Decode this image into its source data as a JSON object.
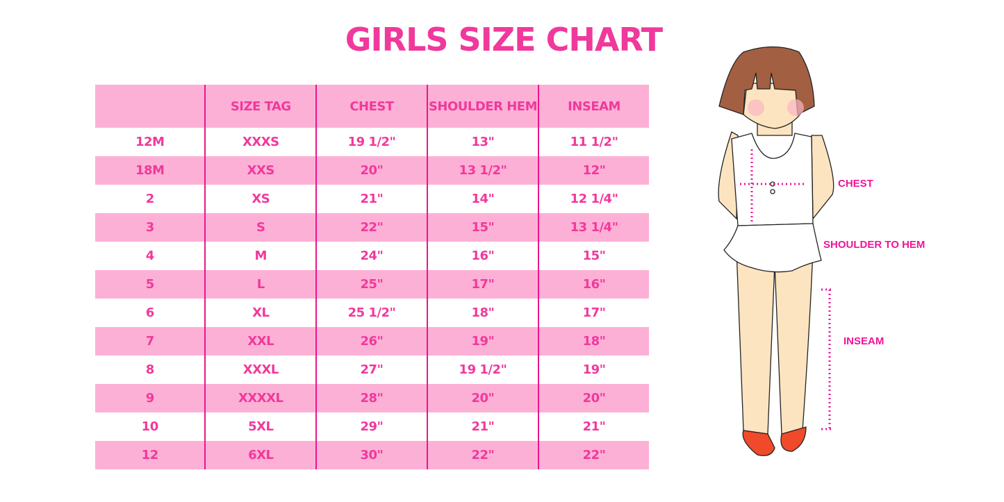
{
  "title": "GIRLS SIZE CHART",
  "table": {
    "headers": [
      "",
      "SIZE TAG",
      "CHEST",
      "SHOULDER HEM",
      "INSEAM"
    ],
    "rows": [
      [
        "12M",
        "XXXS",
        "19 1/2\"",
        "13\"",
        "11 1/2\""
      ],
      [
        "18M",
        "XXS",
        "20\"",
        "13 1/2\"",
        "12\""
      ],
      [
        "2",
        "XS",
        "21\"",
        "14\"",
        "12 1/4\""
      ],
      [
        "3",
        "S",
        "22\"",
        "15\"",
        "13 1/4\""
      ],
      [
        "4",
        "M",
        "24\"",
        "16\"",
        "15\""
      ],
      [
        "5",
        "L",
        "25\"",
        "17\"",
        "16\""
      ],
      [
        "6",
        "XL",
        "25 1/2\"",
        "18\"",
        "17\""
      ],
      [
        "7",
        "XXL",
        "26\"",
        "19\"",
        "18\""
      ],
      [
        "8",
        "XXXL",
        "27\"",
        "19 1/2\"",
        "19\""
      ],
      [
        "9",
        "XXXXL",
        "28\"",
        "20\"",
        "20\""
      ],
      [
        "10",
        "5XL",
        "29\"",
        "21\"",
        "21\""
      ],
      [
        "12",
        "6XL",
        "30\"",
        "22\"",
        "22\""
      ]
    ]
  },
  "illustration": {
    "labels": {
      "chest": "CHEST",
      "shoulder": "SHOULDER TO HEM",
      "inseam": "INSEAM"
    }
  },
  "colors": {
    "accent": "#f0399c",
    "row_pink": "#fdb0d5",
    "divider": "#e8168c"
  }
}
